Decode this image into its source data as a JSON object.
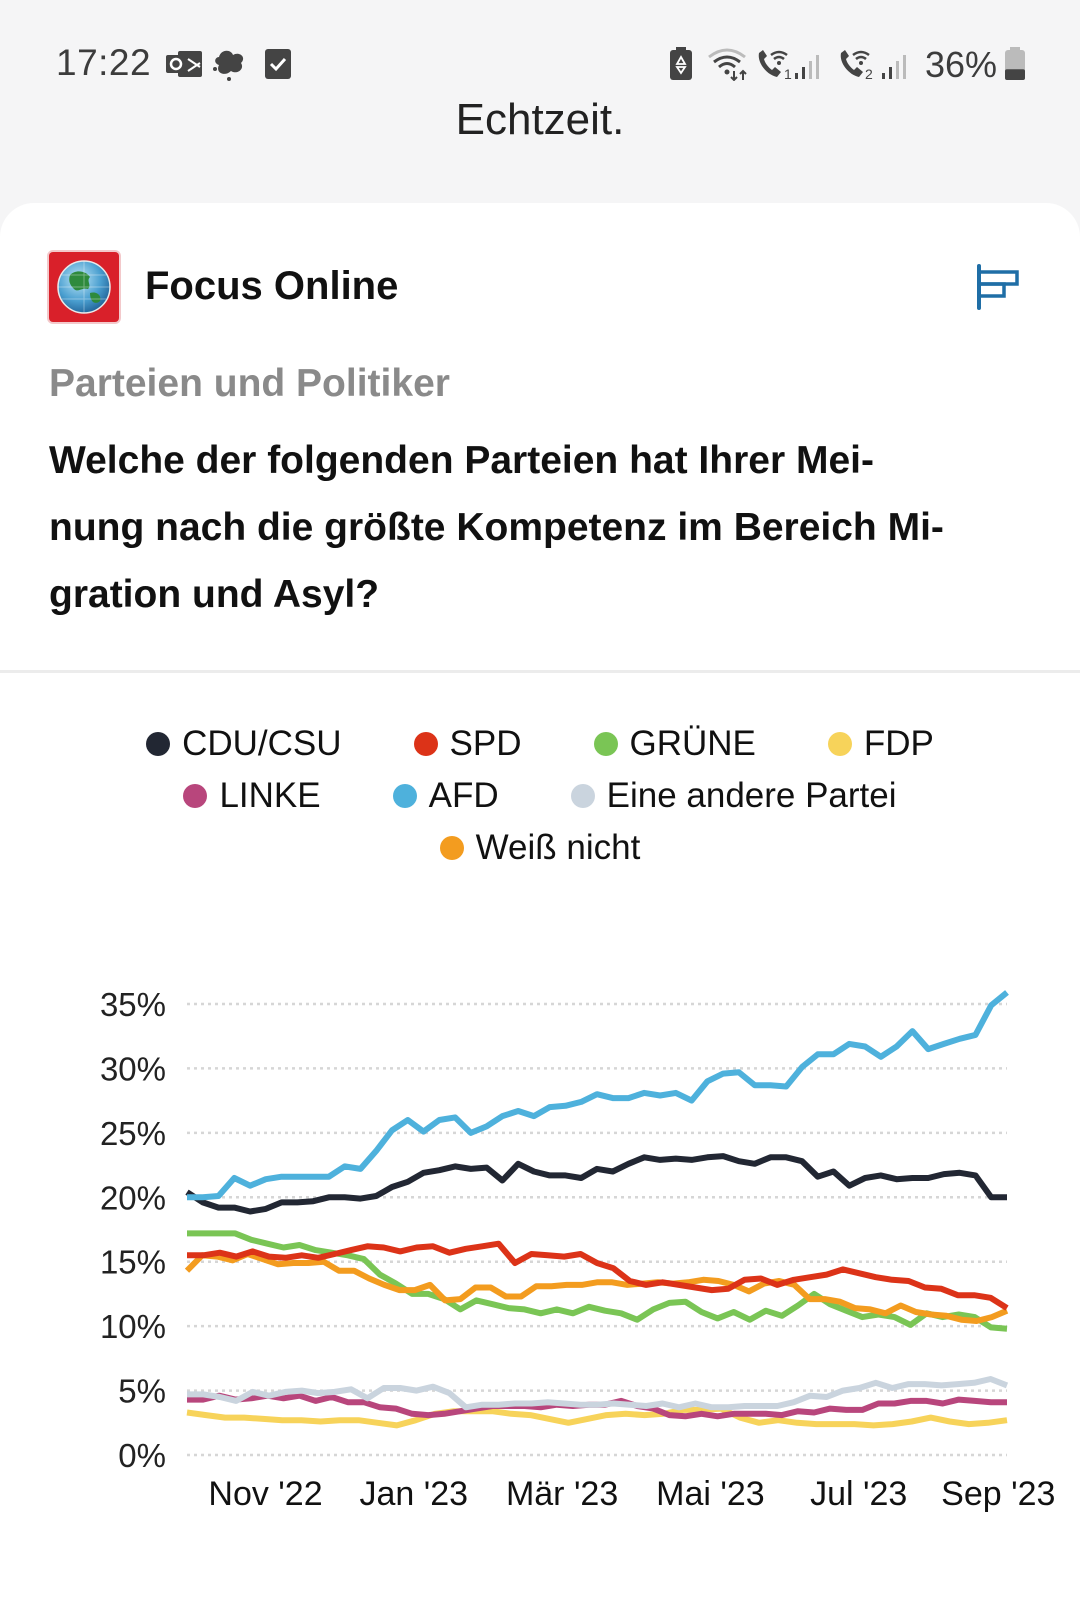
{
  "status_bar": {
    "time": "17:22",
    "left_icons": [
      "outlook-icon",
      "leaf-icon",
      "checkbox-icon"
    ],
    "right_icons": [
      "battery-saver-icon",
      "wifi-icon",
      "wifi-call-sim1-icon",
      "signal-sim1-icon",
      "wifi-call-sim2-icon",
      "signal-sim2-icon"
    ],
    "battery_percent": "36%",
    "battery_level": 0.36
  },
  "header": {
    "title": "Echtzeit."
  },
  "source": {
    "name": "Focus Online",
    "logo": "globe-icon",
    "menu_icon": "chart-bars-icon"
  },
  "category": "Parteien und Politiker",
  "question": "Welche der folgenden Parteien hat Ihrer Meinung nach die größte Kompetenz im Bereich Migration und Asyl?",
  "question_lines": [
    "Welche der folgenden Parteien hat Ihrer Mei-",
    "nung nach die größte Kompetenz im Bereich Mi-",
    "gration und Asyl?"
  ],
  "legend_rows": [
    [
      {
        "label": "CDU/CSU",
        "color": "#222733"
      },
      {
        "label": "SPD",
        "color": "#dc3318"
      },
      {
        "label": "GRÜNE",
        "color": "#7ac555"
      },
      {
        "label": "FDP",
        "color": "#f7d35a"
      }
    ],
    [
      {
        "label": "LINKE",
        "color": "#b8467c"
      },
      {
        "label": "AFD",
        "color": "#4eb1dc"
      },
      {
        "label": "Eine andere Partei",
        "color": "#cad4de"
      }
    ],
    [
      {
        "label": "Weiß nicht",
        "color": "#f39c1f"
      }
    ]
  ],
  "chart_data": {
    "type": "line",
    "title": "",
    "xlabel": "",
    "ylabel": "",
    "ylim": [
      0,
      35
    ],
    "yticks": [
      "0%",
      "5%",
      "10%",
      "15%",
      "20%",
      "25%",
      "30%",
      "35%"
    ],
    "ytick_values": [
      0,
      5,
      10,
      15,
      20,
      25,
      30,
      35
    ],
    "xtick_labels": [
      "Nov '22",
      "Jan '23",
      "Mär '23",
      "Mai '23",
      "Jul '23",
      "Sep '23"
    ],
    "xtick_positions": [
      4.5,
      13,
      21.5,
      30,
      38.5,
      46.5
    ],
    "x_count": 48,
    "grid": "horizontal-dotted",
    "legend_position": "top",
    "series": [
      {
        "name": "CDU/CSU",
        "color": "#222733",
        "values": [
          20.4,
          19.6,
          19.2,
          19.2,
          18.9,
          19.1,
          19.6,
          19.6,
          19.7,
          20.0,
          20.0,
          19.9,
          20.1,
          20.8,
          21.2,
          21.9,
          22.1,
          22.4,
          22.2,
          22.3,
          21.3,
          22.6,
          22.0,
          21.7,
          21.7,
          21.5,
          22.2,
          22.0,
          22.6,
          23.1,
          22.9,
          23.0,
          22.9,
          23.1,
          23.2,
          22.8,
          22.6,
          23.1,
          23.1,
          22.8,
          21.6,
          22.0,
          20.9,
          21.5,
          21.7,
          21.4,
          21.5,
          21.5,
          21.8,
          21.9,
          21.7,
          20.0,
          20.0
        ]
      },
      {
        "name": "SPD",
        "color": "#dc3318",
        "values": [
          15.5,
          15.5,
          15.7,
          15.4,
          15.8,
          15.4,
          15.3,
          15.5,
          15.3,
          15.6,
          15.9,
          16.2,
          16.1,
          15.8,
          16.1,
          16.2,
          15.7,
          16.0,
          16.2,
          16.4,
          14.9,
          15.6,
          15.5,
          15.4,
          15.6,
          14.9,
          14.5,
          13.5,
          13.2,
          13.4,
          13.2,
          13.0,
          12.8,
          12.9,
          13.6,
          13.7,
          13.2,
          13.6,
          13.8,
          14.0,
          14.4,
          14.1,
          13.8,
          13.6,
          13.5,
          13.0,
          12.9,
          12.4,
          12.4,
          12.2,
          11.4
        ]
      },
      {
        "name": "GRÜNE",
        "color": "#7ac555",
        "values": [
          17.2,
          17.2,
          17.2,
          17.2,
          16.7,
          16.4,
          16.1,
          16.3,
          15.9,
          15.7,
          15.5,
          15.2,
          14.0,
          13.3,
          12.5,
          12.5,
          12.1,
          11.3,
          12.0,
          11.7,
          11.4,
          11.3,
          11.0,
          11.3,
          11.0,
          11.5,
          11.2,
          11.0,
          10.5,
          11.3,
          11.8,
          11.9,
          11.1,
          10.6,
          11.1,
          10.5,
          11.2,
          10.8,
          11.6,
          12.5,
          11.7,
          11.2,
          10.7,
          10.9,
          10.7,
          10.1,
          11.0,
          10.7,
          10.9,
          10.7,
          9.9,
          9.8
        ]
      },
      {
        "name": "FDP",
        "color": "#f7d35a",
        "values": [
          3.3,
          3.1,
          2.9,
          2.9,
          2.8,
          2.7,
          2.7,
          2.6,
          2.7,
          2.7,
          2.5,
          2.3,
          2.7,
          3.2,
          3.4,
          3.4,
          3.4,
          3.2,
          3.1,
          2.8,
          2.5,
          2.8,
          3.1,
          3.2,
          3.1,
          3.2,
          3.5,
          3.5,
          3.6,
          2.9,
          2.5,
          2.7,
          2.5,
          2.4,
          2.4,
          2.4,
          2.3,
          2.4,
          2.6,
          2.9,
          2.6,
          2.4,
          2.5,
          2.7
        ]
      },
      {
        "name": "LINKE",
        "color": "#b8467c",
        "values": [
          4.3,
          4.3,
          4.6,
          4.3,
          4.4,
          4.6,
          4.4,
          4.6,
          4.2,
          4.5,
          4.1,
          4.1,
          3.7,
          3.6,
          3.2,
          3.1,
          3.2,
          3.4,
          3.6,
          3.8,
          3.8,
          3.8,
          3.7,
          3.9,
          3.8,
          3.9,
          3.9,
          4.2,
          3.8,
          3.6,
          3.1,
          3.0,
          3.2,
          3.0,
          3.2,
          3.2,
          3.2,
          3.1,
          3.4,
          3.3,
          3.6,
          3.5,
          3.5,
          4.0,
          4.0,
          4.2,
          4.2,
          4.0,
          4.3,
          4.2,
          4.1,
          4.1
        ]
      },
      {
        "name": "AFD",
        "color": "#4eb1dc",
        "values": [
          20.0,
          20.0,
          20.1,
          21.5,
          20.9,
          21.4,
          21.6,
          21.6,
          21.6,
          21.6,
          22.4,
          22.2,
          23.6,
          25.2,
          26.0,
          25.1,
          26.0,
          26.2,
          25.0,
          25.5,
          26.3,
          26.7,
          26.3,
          27.0,
          27.1,
          27.4,
          28.0,
          27.7,
          27.7,
          28.1,
          27.9,
          28.1,
          27.5,
          29.0,
          29.6,
          29.7,
          28.7,
          28.7,
          28.6,
          30.1,
          31.1,
          31.1,
          31.9,
          31.7,
          30.9,
          31.7,
          32.9,
          31.5,
          31.9,
          32.3,
          32.6,
          34.9,
          35.9
        ]
      },
      {
        "name": "Eine andere Partei",
        "color": "#cad4de",
        "values": [
          4.7,
          4.7,
          4.5,
          4.2,
          4.9,
          4.6,
          4.9,
          5.0,
          4.8,
          4.9,
          5.1,
          4.4,
          5.2,
          5.2,
          5.0,
          5.3,
          4.8,
          3.7,
          3.9,
          3.9,
          4.0,
          4.0,
          4.1,
          4.0,
          3.9,
          3.9,
          4.0,
          3.9,
          3.8,
          4.0,
          3.7,
          4.0,
          3.7,
          3.7,
          3.8,
          3.8,
          3.8,
          4.1,
          4.6,
          4.5,
          5.0,
          5.2,
          5.6,
          5.2,
          5.5,
          5.5,
          5.4,
          5.5,
          5.6,
          5.9,
          5.4
        ]
      },
      {
        "name": "Weiß nicht",
        "color": "#f39c1f",
        "values": [
          14.3,
          15.5,
          15.4,
          15.1,
          15.6,
          15.2,
          14.8,
          14.9,
          14.9,
          15.0,
          14.3,
          14.3,
          13.7,
          13.2,
          12.8,
          12.8,
          13.2,
          12.0,
          12.1,
          13.0,
          13.0,
          12.3,
          12.3,
          13.1,
          13.1,
          13.2,
          13.2,
          13.4,
          13.4,
          13.2,
          13.3,
          13.4,
          13.3,
          13.4,
          13.6,
          13.5,
          13.2,
          12.7,
          13.3,
          13.5,
          13.2,
          12.1,
          12.1,
          11.9,
          11.4,
          11.3,
          11.0,
          11.6,
          11.1,
          10.9,
          10.8,
          10.5,
          10.4,
          10.7,
          11.2
        ]
      }
    ]
  }
}
